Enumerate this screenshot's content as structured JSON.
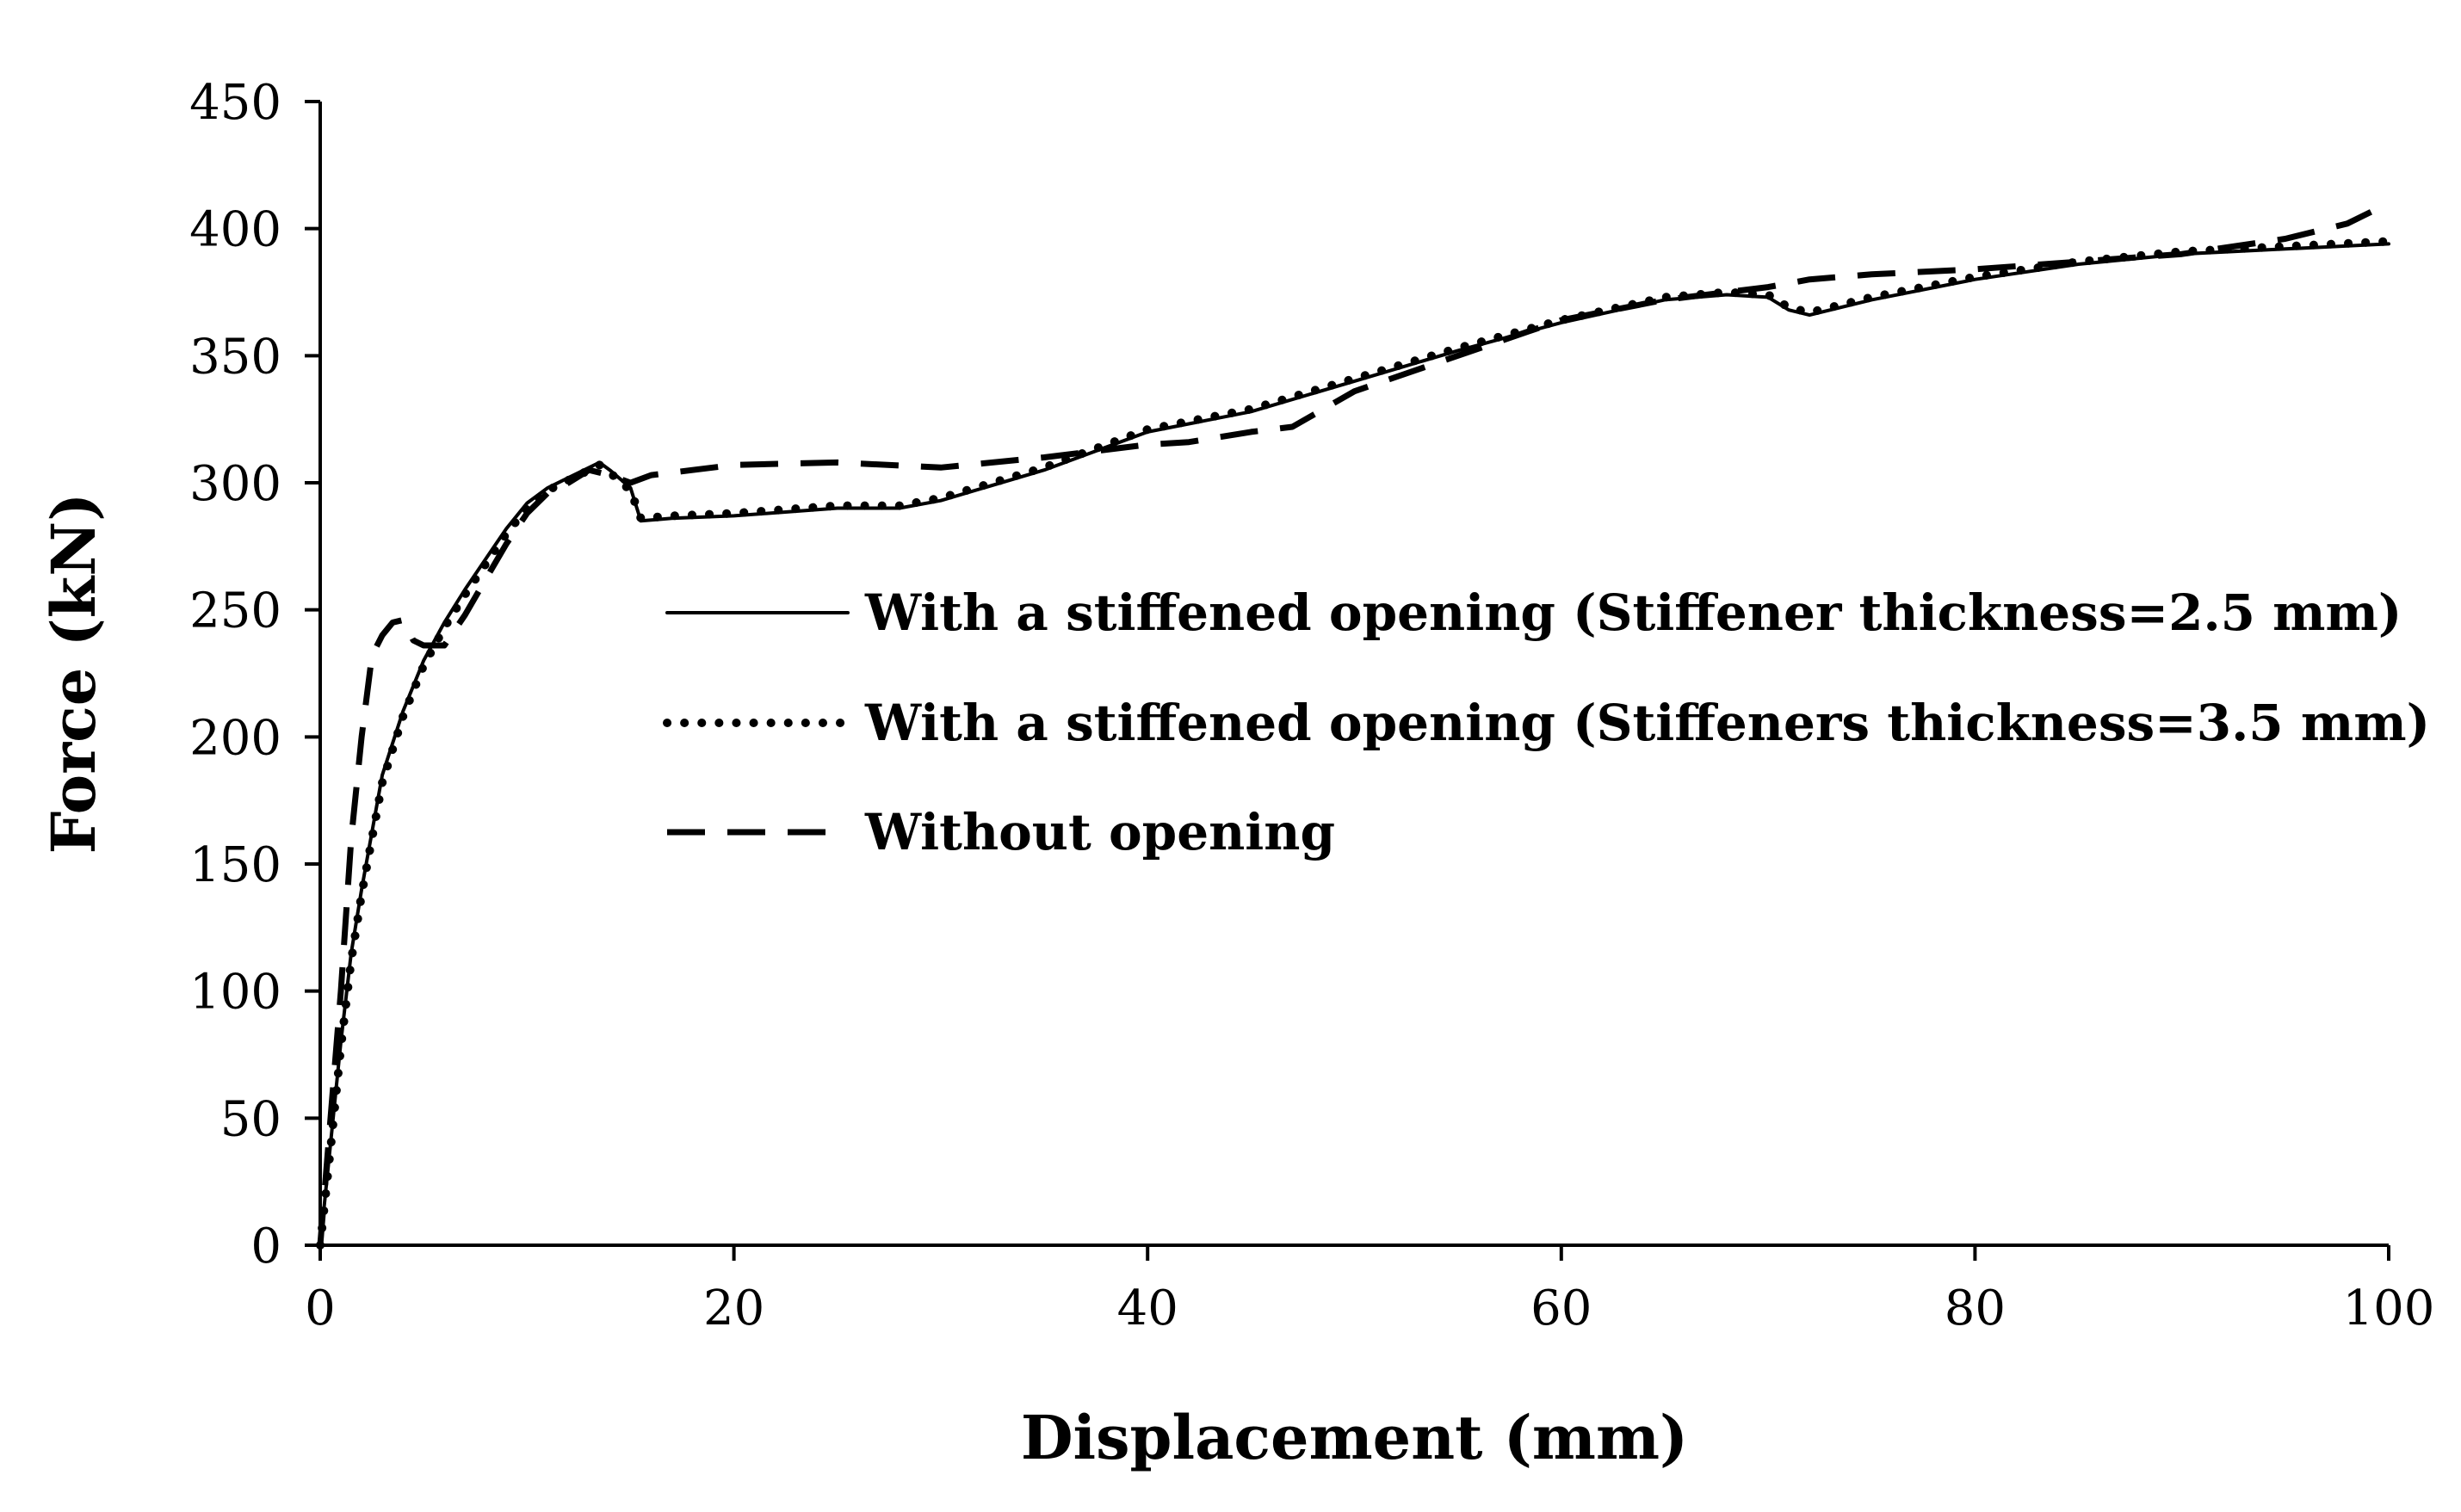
{
  "chart_data": {
    "type": "line",
    "xlabel": "Displacement (mm)",
    "ylabel": "Force (kN)",
    "xlim": [
      0,
      100
    ],
    "ylim": [
      0,
      450
    ],
    "xticks": [
      0,
      20,
      40,
      60,
      80,
      100
    ],
    "yticks": [
      0,
      50,
      100,
      150,
      200,
      250,
      300,
      350,
      400,
      450
    ],
    "grid": false,
    "legend_position": "center-right",
    "series": [
      {
        "name": "With a stiffened opening (Stiffener thickness=2.5 mm)",
        "style": "solid",
        "color": "#000000",
        "x": [
          0,
          0.5,
          1,
          1.5,
          2,
          3,
          4,
          5,
          6,
          7,
          8,
          9,
          10,
          11,
          12,
          13,
          13.5,
          14,
          15,
          15.5,
          17,
          20,
          25,
          28,
          30,
          35,
          40,
          45,
          50,
          55,
          60,
          65,
          68,
          70,
          71,
          72,
          75,
          80,
          85,
          90,
          95,
          100
        ],
        "y": [
          0,
          40,
          80,
          115,
          140,
          185,
          210,
          230,
          245,
          258,
          270,
          282,
          292,
          298,
          302,
          306,
          308,
          305,
          298,
          285,
          286,
          287,
          290,
          290,
          293,
          305,
          320,
          328,
          340,
          352,
          363,
          372,
          374,
          373,
          368,
          366,
          372,
          380,
          386,
          390,
          392,
          394
        ]
      },
      {
        "name": "With a stiffened opening (Stiffeners thickness=3.5 mm)",
        "style": "dotted",
        "color": "#000000",
        "x": [
          0,
          0.5,
          1,
          1.5,
          2,
          3,
          4,
          5,
          6,
          7,
          8,
          9,
          10,
          11,
          12,
          13,
          13.5,
          14,
          15,
          15.5,
          17,
          20,
          25,
          28,
          30,
          35,
          40,
          45,
          50,
          55,
          60,
          65,
          68,
          70,
          71,
          72,
          75,
          80,
          85,
          90,
          95,
          100
        ],
        "y": [
          0,
          38,
          78,
          112,
          138,
          182,
          208,
          228,
          243,
          256,
          268,
          280,
          290,
          297,
          301,
          305,
          307,
          304,
          297,
          286,
          287,
          288,
          291,
          291,
          294,
          306,
          321,
          329,
          341,
          353,
          364,
          373,
          375,
          374,
          369,
          367,
          373,
          381,
          387,
          391,
          393,
          395
        ]
      },
      {
        "name": "Without opening",
        "style": "dashed",
        "color": "#000000",
        "x": [
          0,
          0.5,
          1,
          1.5,
          2,
          2.5,
          3,
          3.5,
          4,
          4.5,
          5,
          6,
          7,
          8,
          9,
          10,
          11,
          12,
          13,
          14,
          15,
          16,
          18,
          20,
          25,
          30,
          35,
          40,
          42,
          45,
          47,
          50,
          55,
          60,
          65,
          70,
          72,
          75,
          80,
          85,
          90,
          95,
          98,
          100
        ],
        "y": [
          0,
          50,
          100,
          160,
          200,
          232,
          240,
          245,
          246,
          238,
          236,
          236,
          248,
          262,
          276,
          288,
          296,
          300,
          305,
          303,
          300,
          303,
          305,
          307,
          308,
          306,
          310,
          315,
          316,
          320,
          322,
          336,
          350,
          364,
          372,
          377,
          380,
          382,
          384,
          387,
          390,
          396,
          402,
          410
        ]
      }
    ]
  }
}
